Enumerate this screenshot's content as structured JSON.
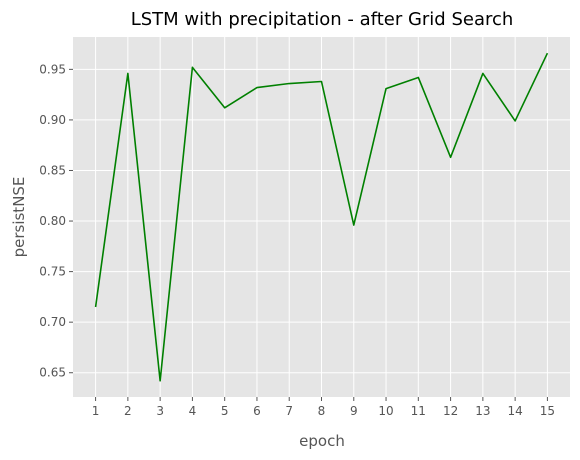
{
  "chart_data": {
    "type": "line",
    "title": "LSTM with precipitation - after Grid Search",
    "xlabel": "epoch",
    "ylabel": "persistNSE",
    "x": [
      1,
      2,
      3,
      4,
      5,
      6,
      7,
      8,
      9,
      10,
      11,
      12,
      13,
      14,
      15
    ],
    "series": [
      {
        "values": [
          0.715,
          0.946,
          0.642,
          0.952,
          0.912,
          0.932,
          0.936,
          0.938,
          0.796,
          0.931,
          0.942,
          0.863,
          0.946,
          0.899,
          0.966
        ],
        "color": "#008000"
      }
    ],
    "xticks": [
      "1",
      "2",
      "3",
      "4",
      "5",
      "6",
      "7",
      "8",
      "9",
      "10",
      "11",
      "12",
      "13",
      "14",
      "15"
    ],
    "yticks": [
      "0.65",
      "0.70",
      "0.75",
      "0.80",
      "0.85",
      "0.90",
      "0.95"
    ],
    "xlim": [
      0.3,
      15.7
    ],
    "ylim": [
      0.626,
      0.982
    ],
    "grid": true,
    "style": {
      "background": "#e5e5e5",
      "grid_color": "#ffffff",
      "text_color": "#555555"
    }
  }
}
